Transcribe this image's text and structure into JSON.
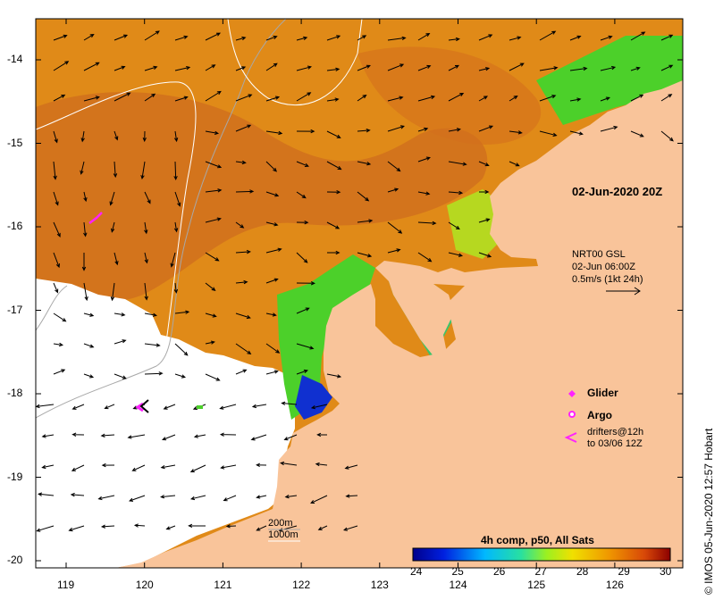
{
  "map": {
    "date_label": "02-Jun-2020 20Z",
    "current_info": [
      "NRT00 GSL",
      "02-Jun 06:00Z",
      "0.5m/s (1kt 24h)"
    ],
    "x_ticks": [
      "119",
      "120",
      "121",
      "122",
      "123",
      "124",
      "125",
      "126"
    ],
    "y_ticks": [
      "-14",
      "-15",
      "-16",
      "-17",
      "-18",
      "-19",
      "-20"
    ],
    "legend": {
      "glider": "Glider",
      "argo": "Argo",
      "drifters": [
        "drifters@12h",
        "to 03/06 12Z"
      ]
    },
    "depth_labels": [
      "200m",
      "1000m"
    ],
    "colorbar": {
      "title": "4h comp, p50, All Sats",
      "ticks": [
        "24",
        "25",
        "26",
        "27",
        "28",
        "29",
        "30"
      ]
    },
    "credit": "© IMOS 05-Jun-2020 12:57 Hobart",
    "colors": {
      "land": "#f9c49a",
      "ocean_warm": "#e08a18",
      "ocean_hot": "#c8601a",
      "cool_green": "#4cd02a",
      "cool_blue": "#1030d0",
      "glider": "#ff22ff",
      "contour_200": "#a8a8a8",
      "contour_1000": "#ffffff"
    }
  }
}
